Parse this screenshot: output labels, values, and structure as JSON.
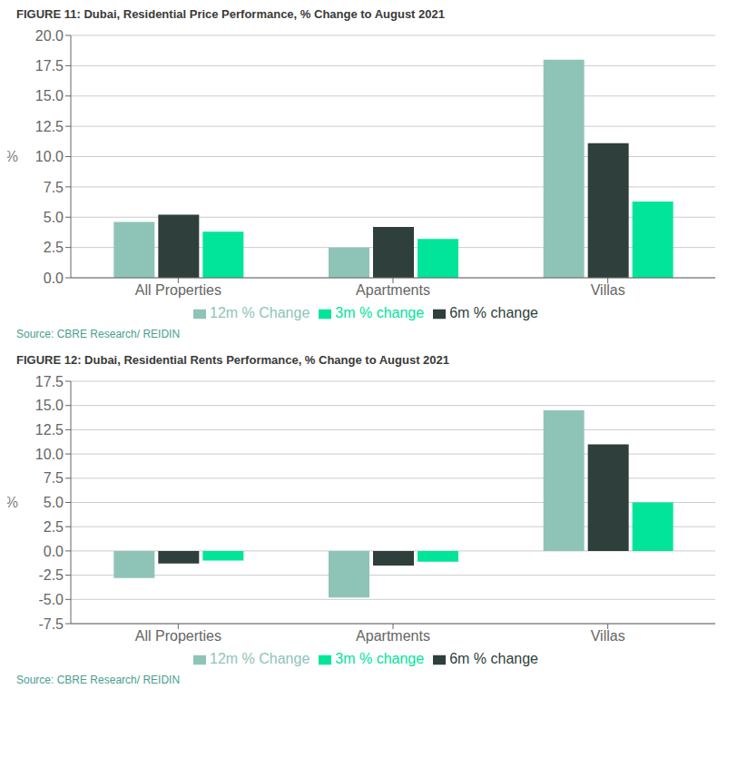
{
  "chart_data": [
    {
      "type": "bar",
      "title": "FIGURE 11: Dubai, Residential Price Performance, % Change to August 2021",
      "categories": [
        "All Properties",
        "Apartments",
        "Villas"
      ],
      "series": [
        {
          "name": "12m % Change",
          "color": "#8EC4B8",
          "values": [
            4.6,
            2.5,
            18.0
          ]
        },
        {
          "name": "6m % change",
          "color": "#2E3F3C",
          "values": [
            5.2,
            4.2,
            11.1
          ]
        },
        {
          "name": "3m % change",
          "color": "#00E599",
          "values": [
            3.8,
            3.2,
            6.3
          ]
        }
      ],
      "ylabel": "%",
      "ylim": [
        0.0,
        20.0
      ],
      "yticks": [
        {
          "value": 0.0,
          "label": "0.0"
        },
        2.5,
        {
          "value": 5.0,
          "label": "5.0"
        },
        7.5,
        {
          "value": 10.0,
          "label": "10.0"
        },
        12.5,
        {
          "value": 15.0,
          "label": "15.0"
        },
        17.5,
        {
          "value": 20.0,
          "label": "20.0"
        }
      ],
      "grid": true,
      "legend": "bottom",
      "annotations": [
        "Source: CBRE Research/ REIDIN"
      ]
    },
    {
      "type": "bar",
      "title": "FIGURE 12: Dubai, Residential Rents Performance, % Change to August 2021",
      "categories": [
        "All Properties",
        "Apartments",
        "Villas"
      ],
      "series": [
        {
          "name": "12m % Change",
          "color": "#8EC4B8",
          "values": [
            -2.8,
            -4.8,
            14.5
          ]
        },
        {
          "name": "6m % change",
          "color": "#2E3F3C",
          "values": [
            -1.3,
            -1.5,
            11.0
          ]
        },
        {
          "name": "3m % change",
          "color": "#00E599",
          "values": [
            -1.0,
            -1.1,
            5.0
          ]
        }
      ],
      "ylabel": "%",
      "ylim": [
        -7.5,
        17.5
      ],
      "yticks": [
        -7.5,
        {
          "value": -5.0,
          "label": "-5.0"
        },
        -2.5,
        {
          "value": 0.0,
          "label": "0.0"
        },
        2.5,
        {
          "value": 5.0,
          "label": "5.0"
        },
        7.5,
        {
          "value": 10.0,
          "label": "10.0"
        },
        12.5,
        {
          "value": 15.0,
          "label": "15.0"
        },
        17.5
      ],
      "grid": true,
      "legend": "bottom",
      "annotations": [
        "Source: CBRE Research/ REIDIN"
      ]
    }
  ]
}
